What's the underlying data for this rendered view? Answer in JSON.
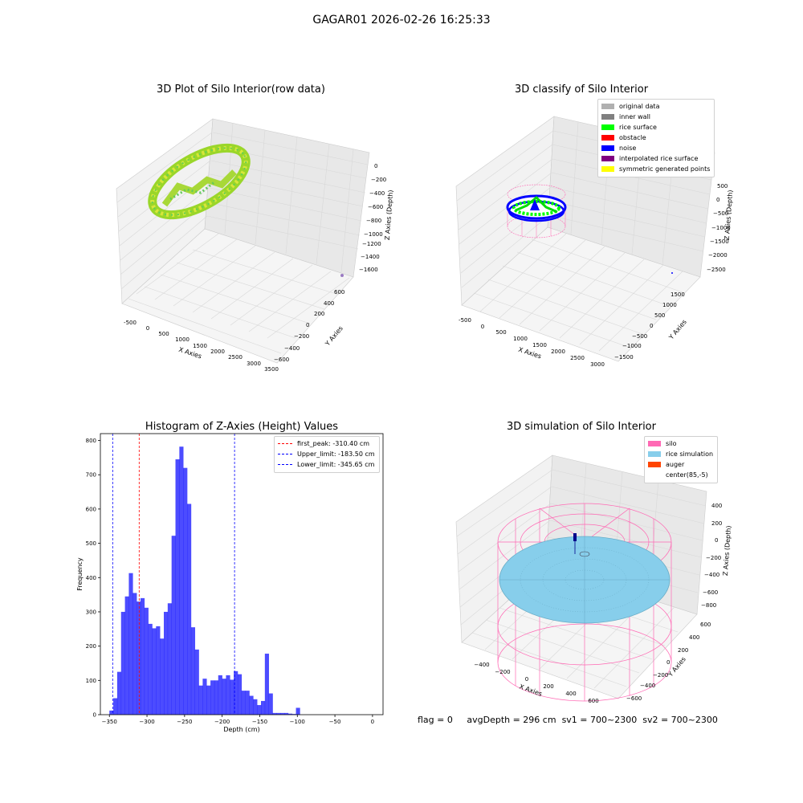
{
  "suptitle": "GAGAR01 2026-02-26 16:25:33",
  "panels": {
    "raw": {
      "title": "3D Plot of Silo Interior(row data)",
      "xlabel": "X Axies",
      "ylabel": "Y Axies",
      "zlabel": "Z Axies (Depth)",
      "xticks": [
        "-500",
        "0",
        "500",
        "1000",
        "1500",
        "2000",
        "2500",
        "3000",
        "3500"
      ],
      "yticks": [
        "600",
        "400",
        "200",
        "0",
        "−200",
        "−400",
        "−600"
      ],
      "zticks": [
        "0",
        "−200",
        "−400",
        "−600",
        "−800",
        "−1000",
        "−1200",
        "−1400",
        "−1600"
      ]
    },
    "classify": {
      "title": "3D classify of Silo Interior",
      "xlabel": "X Axies",
      "ylabel": "Y Axies",
      "zlabel": "Z Axies (Depth)",
      "xticks": [
        "-500",
        "0",
        "500",
        "1000",
        "1500",
        "2000",
        "2500",
        "3000"
      ],
      "yticks": [
        "1500",
        "1000",
        "500",
        "0",
        "−500",
        "−1000",
        "−1500"
      ],
      "zticks": [
        "500",
        "0",
        "−500",
        "−1000",
        "−1500",
        "−2000",
        "−2500"
      ],
      "zticks_hidden_top": "1000",
      "legend": [
        {
          "label": "original data",
          "color": "#b0b0b0"
        },
        {
          "label": "inner wall",
          "color": "#808080"
        },
        {
          "label": "rice surface",
          "color": "#00ff00"
        },
        {
          "label": "obstacle",
          "color": "#ff0000"
        },
        {
          "label": "noise",
          "color": "#0000ff"
        },
        {
          "label": "interpolated rice surface",
          "color": "#800080"
        },
        {
          "label": "symmetric generated points",
          "color": "#ffff00"
        }
      ]
    },
    "simulation": {
      "title": "3D simulation of Silo Interior",
      "xlabel": "X Axies",
      "ylabel": "Y Axies",
      "zlabel": "Z Axies (Depth)",
      "xticks": [
        "−400",
        "−200",
        "0",
        "200",
        "400",
        "600"
      ],
      "yticks": [
        "600",
        "400",
        "200",
        "0",
        "−200",
        "−400",
        "−600"
      ],
      "zticks": [
        "400",
        "200",
        "0",
        "−200",
        "−400",
        "−600",
        "−800"
      ],
      "legend": [
        {
          "label": "silo",
          "color": "#ff69b4"
        },
        {
          "label": "rice simulation",
          "color": "#87ceeb"
        },
        {
          "label": "auger",
          "color": "#ff4500"
        },
        {
          "label": "center(85,-5)",
          "color": "#ffffff"
        }
      ]
    }
  },
  "chart_data": {
    "type": "bar",
    "title": "Histogram of Z-Axies (Height) Values",
    "xlabel": "Depth (cm)",
    "ylabel": "Frequency",
    "xlim": [
      -362,
      14
    ],
    "ylim": [
      0,
      820
    ],
    "xticks": [
      -350,
      -300,
      -250,
      -200,
      -150,
      -100,
      -50,
      0
    ],
    "yticks": [
      0,
      100,
      200,
      300,
      400,
      500,
      600,
      700,
      800
    ],
    "bar_color": "#0000ff",
    "bin_start": -350,
    "bin_width": 5.17,
    "values": [
      12,
      48,
      125,
      300,
      345,
      413,
      355,
      330,
      340,
      312,
      265,
      252,
      258,
      222,
      300,
      325,
      522,
      745,
      782,
      720,
      615,
      255,
      190,
      85,
      105,
      85,
      100,
      100,
      115,
      105,
      115,
      102,
      127,
      118,
      70,
      70,
      55,
      45,
      28,
      40,
      178,
      62,
      5,
      5,
      5,
      5,
      3,
      2,
      20
    ],
    "vlines": [
      {
        "label": "first_peak: -310.40 cm",
        "x": -310.4,
        "color": "#ff0000"
      },
      {
        "label": "Upper_limit: -183.50 cm",
        "x": -183.5,
        "color": "#0000ff"
      },
      {
        "label": "Lower_limit: -345.65 cm",
        "x": -345.65,
        "color": "#0000ff"
      }
    ]
  },
  "status": {
    "flag": "flag = 0",
    "avg": "avgDepth = 296 cm",
    "sv1": "sv1 = 700~2300",
    "sv2": "sv2 = 700~2300"
  }
}
